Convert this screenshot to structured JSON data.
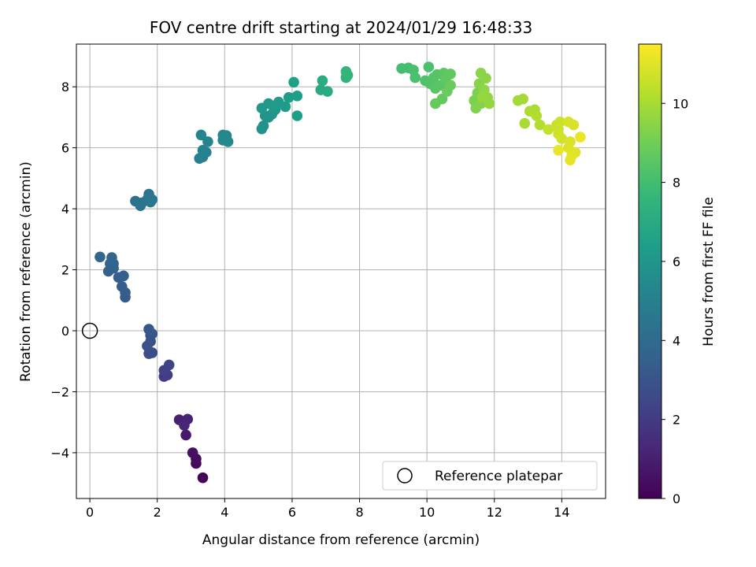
{
  "chart_data": {
    "type": "scatter",
    "title": "FOV centre drift starting at 2024/01/29 16:48:33",
    "xlabel": "Angular distance from reference (arcmin)",
    "ylabel": "Rotation from reference (arcmin)",
    "xlim": [
      -0.4,
      15.3
    ],
    "ylim": [
      -5.5,
      9.4
    ],
    "xticks": [
      0,
      2,
      4,
      6,
      8,
      10,
      12,
      14
    ],
    "yticks": [
      -4,
      -2,
      0,
      2,
      4,
      6,
      8
    ],
    "grid": true,
    "legend": {
      "position": "lower right",
      "entries": [
        "Reference platepar"
      ]
    },
    "reference_point": {
      "x": 0,
      "y": 0,
      "label": "Reference platepar"
    },
    "colorbar": {
      "label": "Hours from first FF file",
      "range": [
        0,
        11.5
      ],
      "ticks": [
        0,
        2,
        4,
        6,
        8,
        10
      ],
      "colormap": "viridis"
    },
    "points": [
      {
        "x": 3.35,
        "y": -4.82,
        "h": 0.1
      },
      {
        "x": 3.15,
        "y": -4.35,
        "h": 0.3
      },
      {
        "x": 3.15,
        "y": -4.2,
        "h": 0.4
      },
      {
        "x": 3.05,
        "y": -4.0,
        "h": 0.5
      },
      {
        "x": 2.85,
        "y": -3.42,
        "h": 0.8
      },
      {
        "x": 2.65,
        "y": -2.92,
        "h": 1.0
      },
      {
        "x": 2.9,
        "y": -2.9,
        "h": 1.1
      },
      {
        "x": 2.8,
        "y": -3.1,
        "h": 1.2
      },
      {
        "x": 2.2,
        "y": -1.5,
        "h": 2.0
      },
      {
        "x": 2.3,
        "y": -1.45,
        "h": 2.1
      },
      {
        "x": 2.2,
        "y": -1.3,
        "h": 2.2
      },
      {
        "x": 2.35,
        "y": -1.12,
        "h": 2.3
      },
      {
        "x": 1.75,
        "y": -0.75,
        "h": 2.6
      },
      {
        "x": 1.85,
        "y": -0.72,
        "h": 2.7
      },
      {
        "x": 1.7,
        "y": -0.5,
        "h": 2.8
      },
      {
        "x": 1.8,
        "y": -0.35,
        "h": 2.9
      },
      {
        "x": 1.8,
        "y": -0.15,
        "h": 3.0
      },
      {
        "x": 1.85,
        "y": -0.1,
        "h": 3.05
      },
      {
        "x": 1.75,
        "y": 0.05,
        "h": 3.1
      },
      {
        "x": 1.05,
        "y": 1.1,
        "h": 3.3
      },
      {
        "x": 1.05,
        "y": 1.25,
        "h": 3.35
      },
      {
        "x": 0.95,
        "y": 1.45,
        "h": 3.4
      },
      {
        "x": 1.0,
        "y": 1.8,
        "h": 3.45
      },
      {
        "x": 0.85,
        "y": 1.75,
        "h": 3.5
      },
      {
        "x": 0.55,
        "y": 1.95,
        "h": 3.55
      },
      {
        "x": 0.7,
        "y": 2.05,
        "h": 3.6
      },
      {
        "x": 0.6,
        "y": 2.2,
        "h": 3.65
      },
      {
        "x": 0.7,
        "y": 2.2,
        "h": 3.7
      },
      {
        "x": 0.65,
        "y": 2.4,
        "h": 3.75
      },
      {
        "x": 0.3,
        "y": 2.42,
        "h": 3.8
      },
      {
        "x": 1.35,
        "y": 4.25,
        "h": 4.3
      },
      {
        "x": 1.5,
        "y": 4.1,
        "h": 4.35
      },
      {
        "x": 1.55,
        "y": 4.2,
        "h": 4.4
      },
      {
        "x": 1.7,
        "y": 4.3,
        "h": 4.45
      },
      {
        "x": 1.75,
        "y": 4.48,
        "h": 4.5
      },
      {
        "x": 1.8,
        "y": 4.22,
        "h": 4.55
      },
      {
        "x": 1.85,
        "y": 4.3,
        "h": 4.6
      },
      {
        "x": 3.25,
        "y": 5.65,
        "h": 5.0
      },
      {
        "x": 3.35,
        "y": 5.7,
        "h": 5.05
      },
      {
        "x": 3.45,
        "y": 5.85,
        "h": 5.1
      },
      {
        "x": 3.35,
        "y": 5.92,
        "h": 5.15
      },
      {
        "x": 3.5,
        "y": 6.2,
        "h": 5.2
      },
      {
        "x": 3.3,
        "y": 6.42,
        "h": 5.25
      },
      {
        "x": 3.95,
        "y": 6.25,
        "h": 5.3
      },
      {
        "x": 4.05,
        "y": 6.4,
        "h": 5.35
      },
      {
        "x": 3.95,
        "y": 6.42,
        "h": 5.4
      },
      {
        "x": 4.1,
        "y": 6.2,
        "h": 5.45
      },
      {
        "x": 5.1,
        "y": 6.62,
        "h": 5.8
      },
      {
        "x": 5.15,
        "y": 6.72,
        "h": 5.85
      },
      {
        "x": 5.2,
        "y": 7.05,
        "h": 5.9
      },
      {
        "x": 5.3,
        "y": 7.0,
        "h": 5.95
      },
      {
        "x": 5.4,
        "y": 7.1,
        "h": 6.0
      },
      {
        "x": 5.5,
        "y": 7.25,
        "h": 6.05
      },
      {
        "x": 5.1,
        "y": 7.3,
        "h": 6.1
      },
      {
        "x": 5.3,
        "y": 7.45,
        "h": 6.15
      },
      {
        "x": 5.45,
        "y": 7.35,
        "h": 6.2
      },
      {
        "x": 5.6,
        "y": 7.5,
        "h": 6.25
      },
      {
        "x": 5.8,
        "y": 7.35,
        "h": 6.3
      },
      {
        "x": 5.9,
        "y": 7.65,
        "h": 6.35
      },
      {
        "x": 6.15,
        "y": 7.7,
        "h": 6.4
      },
      {
        "x": 6.15,
        "y": 7.05,
        "h": 6.45
      },
      {
        "x": 6.05,
        "y": 8.15,
        "h": 6.5
      },
      {
        "x": 6.85,
        "y": 7.9,
        "h": 6.9
      },
      {
        "x": 7.05,
        "y": 7.85,
        "h": 7.0
      },
      {
        "x": 6.9,
        "y": 8.2,
        "h": 7.1
      },
      {
        "x": 7.6,
        "y": 8.3,
        "h": 7.4
      },
      {
        "x": 7.65,
        "y": 8.38,
        "h": 7.45
      },
      {
        "x": 7.6,
        "y": 8.5,
        "h": 7.5
      },
      {
        "x": 9.25,
        "y": 8.6,
        "h": 8.0
      },
      {
        "x": 9.45,
        "y": 8.62,
        "h": 8.05
      },
      {
        "x": 9.6,
        "y": 8.55,
        "h": 8.1
      },
      {
        "x": 9.65,
        "y": 8.3,
        "h": 8.15
      },
      {
        "x": 10.05,
        "y": 8.65,
        "h": 8.2
      },
      {
        "x": 9.95,
        "y": 8.2,
        "h": 8.25
      },
      {
        "x": 10.1,
        "y": 8.1,
        "h": 8.3
      },
      {
        "x": 10.2,
        "y": 8.3,
        "h": 8.35
      },
      {
        "x": 10.3,
        "y": 8.4,
        "h": 8.4
      },
      {
        "x": 10.25,
        "y": 7.95,
        "h": 8.45
      },
      {
        "x": 10.4,
        "y": 8.05,
        "h": 8.5
      },
      {
        "x": 10.5,
        "y": 8.45,
        "h": 8.55
      },
      {
        "x": 10.55,
        "y": 8.25,
        "h": 8.6
      },
      {
        "x": 10.7,
        "y": 8.42,
        "h": 8.65
      },
      {
        "x": 10.45,
        "y": 7.6,
        "h": 8.7
      },
      {
        "x": 10.25,
        "y": 7.45,
        "h": 8.75
      },
      {
        "x": 10.7,
        "y": 8.05,
        "h": 8.8
      },
      {
        "x": 10.6,
        "y": 7.85,
        "h": 8.85
      },
      {
        "x": 11.4,
        "y": 7.55,
        "h": 9.2
      },
      {
        "x": 11.5,
        "y": 7.8,
        "h": 9.25
      },
      {
        "x": 11.45,
        "y": 7.3,
        "h": 9.3
      },
      {
        "x": 11.6,
        "y": 7.45,
        "h": 9.35
      },
      {
        "x": 11.55,
        "y": 8.1,
        "h": 9.4
      },
      {
        "x": 11.6,
        "y": 8.45,
        "h": 9.45
      },
      {
        "x": 11.75,
        "y": 8.28,
        "h": 9.5
      },
      {
        "x": 11.7,
        "y": 7.9,
        "h": 9.55
      },
      {
        "x": 11.8,
        "y": 7.65,
        "h": 9.6
      },
      {
        "x": 11.85,
        "y": 7.45,
        "h": 9.65
      },
      {
        "x": 11.65,
        "y": 7.65,
        "h": 9.7
      },
      {
        "x": 12.7,
        "y": 7.55,
        "h": 9.9
      },
      {
        "x": 12.85,
        "y": 7.6,
        "h": 9.95
      },
      {
        "x": 12.9,
        "y": 6.8,
        "h": 10.0
      },
      {
        "x": 13.05,
        "y": 7.2,
        "h": 10.05
      },
      {
        "x": 13.2,
        "y": 7.25,
        "h": 10.1
      },
      {
        "x": 13.25,
        "y": 7.05,
        "h": 10.15
      },
      {
        "x": 13.35,
        "y": 6.75,
        "h": 10.2
      },
      {
        "x": 13.6,
        "y": 6.6,
        "h": 10.5
      },
      {
        "x": 13.85,
        "y": 6.75,
        "h": 10.55
      },
      {
        "x": 13.95,
        "y": 6.85,
        "h": 10.6
      },
      {
        "x": 13.9,
        "y": 6.6,
        "h": 10.65
      },
      {
        "x": 13.9,
        "y": 6.45,
        "h": 10.7
      },
      {
        "x": 14.0,
        "y": 6.3,
        "h": 10.75
      },
      {
        "x": 14.2,
        "y": 6.85,
        "h": 10.8
      },
      {
        "x": 14.35,
        "y": 6.75,
        "h": 10.85
      },
      {
        "x": 14.25,
        "y": 6.2,
        "h": 10.9
      },
      {
        "x": 14.2,
        "y": 6.0,
        "h": 10.95
      },
      {
        "x": 14.4,
        "y": 5.85,
        "h": 11.0
      },
      {
        "x": 14.3,
        "y": 5.75,
        "h": 11.05
      },
      {
        "x": 14.25,
        "y": 5.6,
        "h": 11.1
      },
      {
        "x": 13.9,
        "y": 5.92,
        "h": 11.15
      },
      {
        "x": 14.55,
        "y": 6.35,
        "h": 11.2
      }
    ]
  }
}
